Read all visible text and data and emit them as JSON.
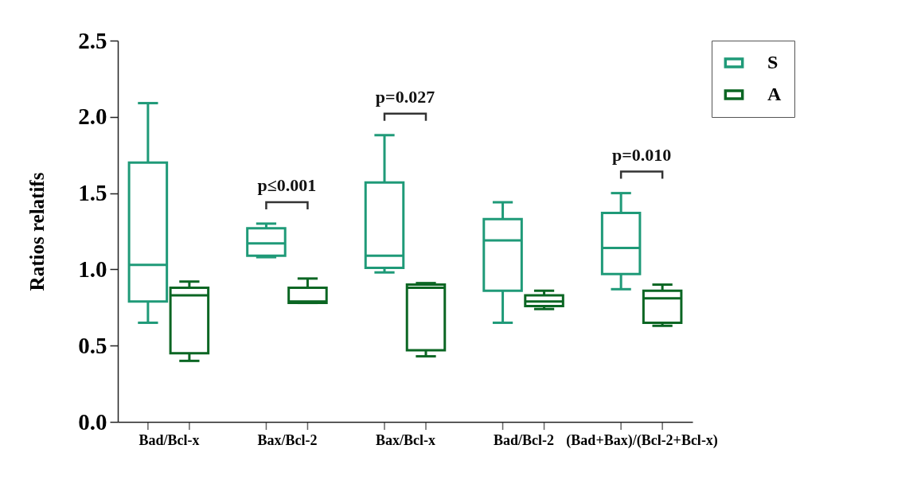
{
  "chart_data": {
    "type": "box",
    "ylabel": "Ratios relatifs",
    "categories": [
      "Bad/Bcl-x",
      "Bax/Bcl-2",
      "Bax/Bcl-x",
      "Bad/Bcl-2",
      "(Bad+Bax)/(Bcl-2+Bcl-x)"
    ],
    "series": [
      {
        "name": "S",
        "color": "#1f9a78",
        "boxes": [
          {
            "low": 0.65,
            "q1": 0.79,
            "median": 1.03,
            "q3": 1.7,
            "high": 2.09
          },
          {
            "low": 1.08,
            "q1": 1.09,
            "median": 1.17,
            "q3": 1.27,
            "high": 1.3
          },
          {
            "low": 0.98,
            "q1": 1.01,
            "median": 1.09,
            "q3": 1.57,
            "high": 1.88
          },
          {
            "low": 0.65,
            "q1": 0.86,
            "median": 1.19,
            "q3": 1.33,
            "high": 1.44
          },
          {
            "low": 0.87,
            "q1": 0.97,
            "median": 1.14,
            "q3": 1.37,
            "high": 1.5
          }
        ]
      },
      {
        "name": "A",
        "color": "#0b6623",
        "boxes": [
          {
            "low": 0.4,
            "q1": 0.45,
            "median": 0.83,
            "q3": 0.88,
            "high": 0.92
          },
          {
            "low": 0.78,
            "q1": 0.78,
            "median": 0.79,
            "q3": 0.88,
            "high": 0.94
          },
          {
            "low": 0.43,
            "q1": 0.47,
            "median": 0.88,
            "q3": 0.9,
            "high": 0.91
          },
          {
            "low": 0.74,
            "q1": 0.76,
            "median": 0.79,
            "q3": 0.83,
            "high": 0.86
          },
          {
            "low": 0.63,
            "q1": 0.65,
            "median": 0.81,
            "q3": 0.86,
            "high": 0.9
          }
        ]
      }
    ],
    "ylim": [
      0,
      2.5
    ],
    "yticks": [
      {
        "value": 0,
        "label": "0.0"
      },
      0.5,
      {
        "value": 1,
        "label": "1.0"
      },
      1.5,
      {
        "value": 2,
        "label": "2.0"
      },
      2.5
    ],
    "legend": "top right",
    "annotations": [
      "p≤0.001",
      "p=0.027",
      "p=0.010"
    ]
  }
}
